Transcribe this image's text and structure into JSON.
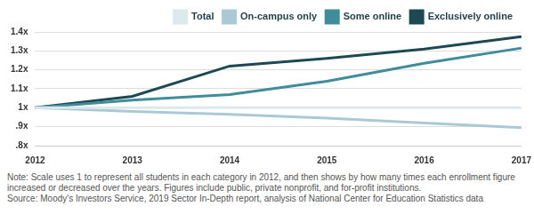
{
  "chart_data": {
    "type": "line",
    "categories": [
      "2012",
      "2013",
      "2014",
      "2015",
      "2016",
      "2017"
    ],
    "series": [
      {
        "name": "Total",
        "color": "#dde8ed",
        "values": [
          1,
          1,
          1,
          1,
          1,
          1
        ]
      },
      {
        "name": "On-campus only",
        "color": "#a9cad5",
        "values": [
          1,
          0.98,
          0.965,
          0.945,
          0.92,
          0.895
        ]
      },
      {
        "name": "Some online",
        "color": "#3f8c9a",
        "values": [
          1,
          1.04,
          1.07,
          1.14,
          1.235,
          1.315
        ]
      },
      {
        "name": "Exclusively online",
        "color": "#1d4a52",
        "values": [
          1,
          1.06,
          1.22,
          1.26,
          1.31,
          1.375
        ]
      }
    ],
    "ylim": [
      0.8,
      1.4
    ],
    "yticks": [
      {
        "value": 0.8,
        "label": ".8x"
      },
      {
        "value": 0.9,
        "label": ".9x"
      },
      {
        "value": 1,
        "label": "1x"
      },
      {
        "value": 1.1,
        "label": "1.1x"
      },
      {
        "value": 1.2,
        "label": "1.2x"
      },
      {
        "value": 1.3,
        "label": "1.3x"
      },
      {
        "value": 1.4,
        "label": "1.4x"
      }
    ],
    "grid": true,
    "legend": "top-right",
    "note": "Note: Scale uses 1 to represent all students in each category in 2012, and then shows by how many times each enrollment figure increased or decreased over the years. Figures include public, private nonprofit, and for-profit institutions.",
    "source": "Source: Moody's Investors Service, 2019 Sector In-Depth report, analysis of National Center for Education Statistics data"
  }
}
